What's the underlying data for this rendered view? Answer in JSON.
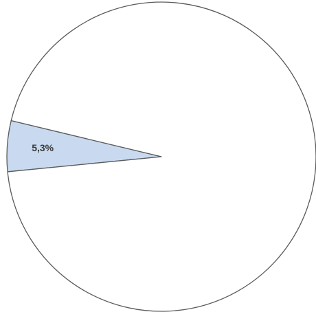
{
  "chart_data": {
    "type": "pie",
    "values": [
      5.3,
      94.7
    ],
    "value_labels": [
      "5,3%",
      null
    ],
    "colors": [
      "#c9daf0",
      "#ffffff"
    ]
  }
}
